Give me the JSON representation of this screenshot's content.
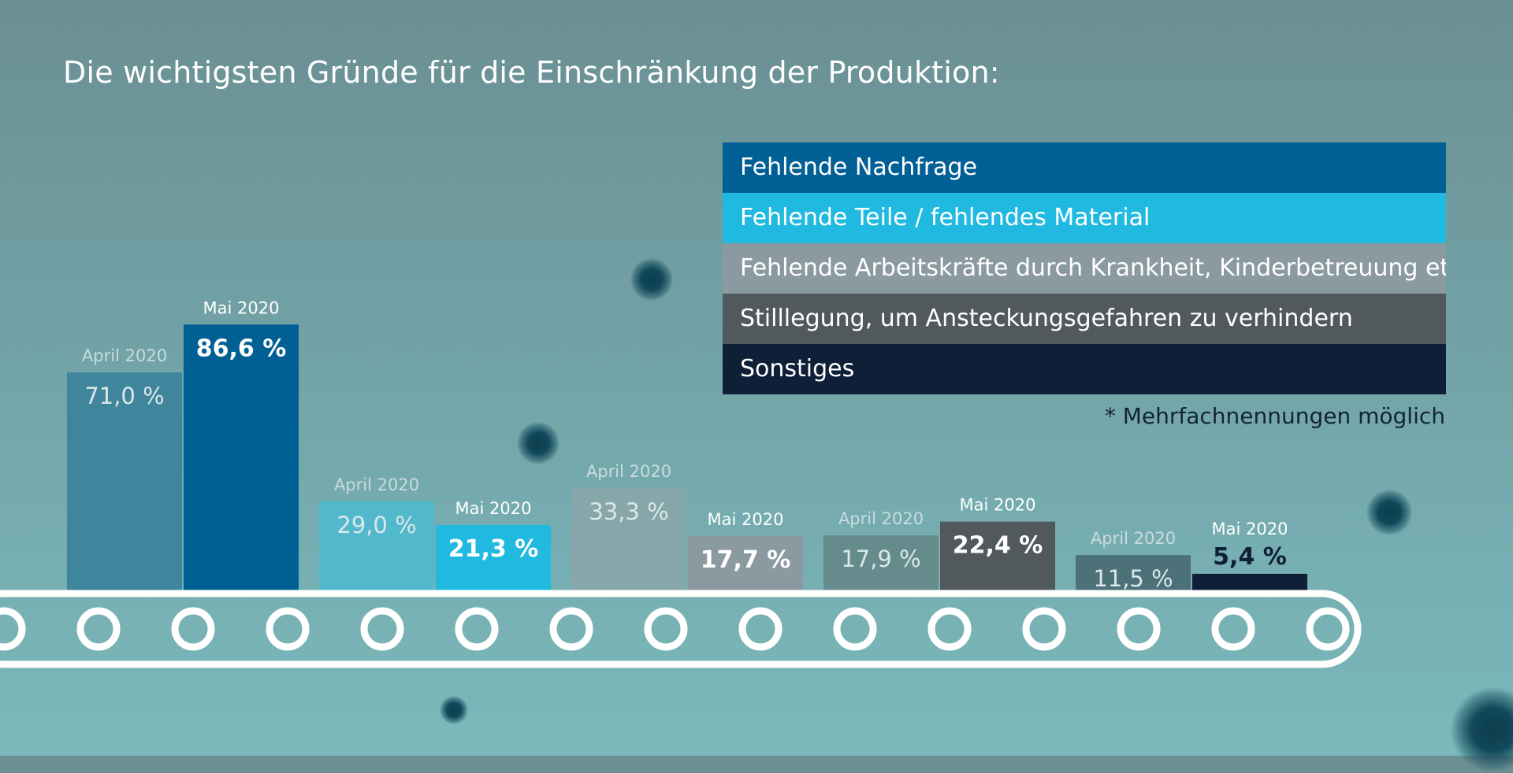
{
  "title": "Die wichtigsten Gründe für die Einschränkung der Produktion:",
  "footnote": "* Mehrfachnennungen möglich",
  "legend": [
    {
      "label": "Fehlende Nachfrage",
      "color": "#005f94"
    },
    {
      "label": "Fehlende Teile / fehlendes Material",
      "color": "#20b9e0"
    },
    {
      "label": "Fehlende Arbeitskräfte durch Krankheit, Kinderbetreuung etc.",
      "color": "#8b9aa1"
    },
    {
      "label": "Stilllegung, um Ansteckungsgefahren zu verhindern",
      "color": "#52595c"
    },
    {
      "label": "Sonstiges",
      "color": "#0f1f38"
    }
  ],
  "chart_data": {
    "type": "bar",
    "categories": [
      "Fehlende Nachfrage",
      "Fehlende Teile / fehlendes Material",
      "Fehlende Arbeitskräfte durch Krankheit, Kinderbetreuung etc.",
      "Stilllegung, um Ansteckungsgefahren zu verhindern",
      "Sonstiges"
    ],
    "series": [
      {
        "name": "April 2020",
        "values": [
          71.0,
          29.0,
          33.3,
          17.9,
          11.5
        ],
        "labels": [
          "71,0 %",
          "29,0 %",
          "33,3 %",
          "17,9 %",
          "11,5 %"
        ],
        "colors": [
          "#3f869c",
          "#52b8cb",
          "#86a6aa",
          "#658b8c",
          "#4c7178"
        ]
      },
      {
        "name": "Mai 2020",
        "values": [
          86.6,
          21.3,
          17.7,
          22.4,
          5.4
        ],
        "labels": [
          "86,6 %",
          "21,3 %",
          "17,7 %",
          "22,4 %",
          "5,4 %"
        ],
        "colors": [
          "#005f94",
          "#20b9e0",
          "#8b9aa1",
          "#52595c",
          "#0f1f38"
        ]
      }
    ],
    "ylim": [
      0,
      100
    ],
    "grid": false
  }
}
